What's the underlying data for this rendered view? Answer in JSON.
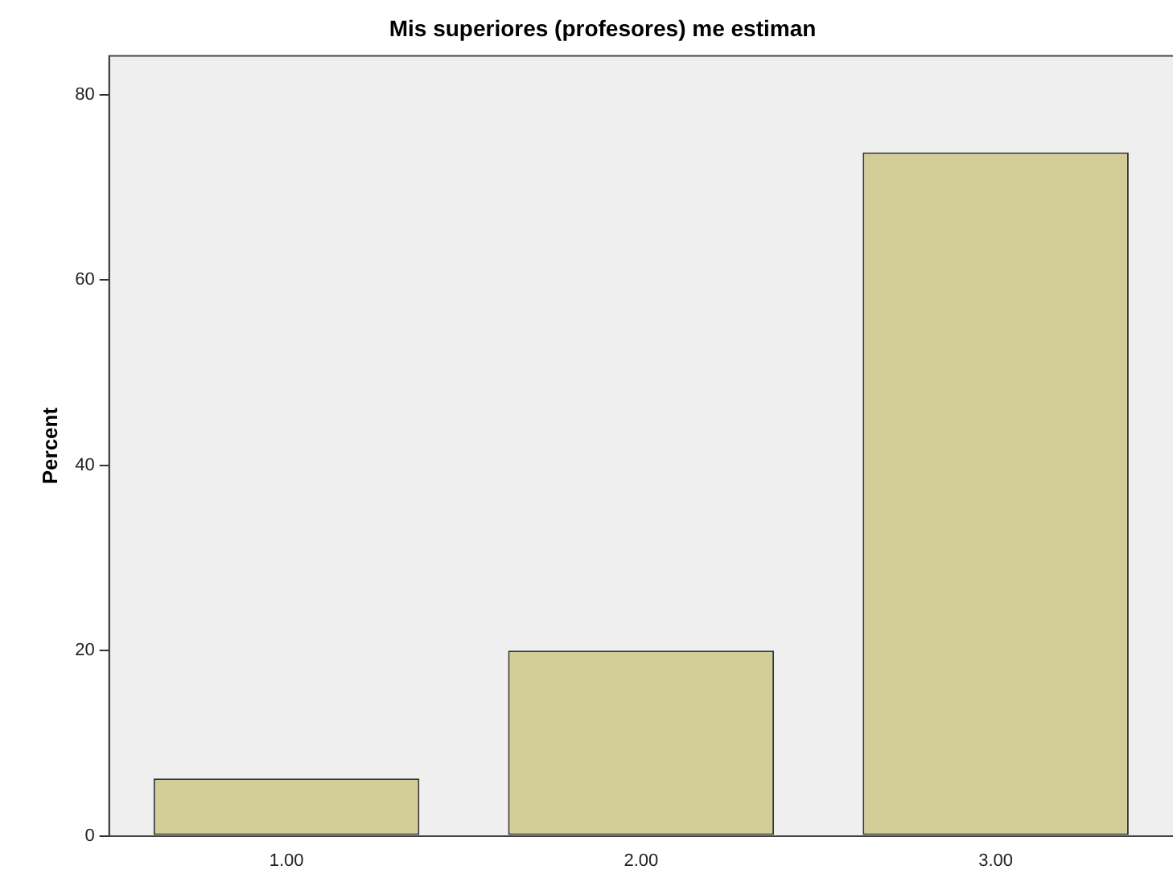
{
  "chart_data": {
    "type": "bar",
    "title": "Mis superiores (profesores) me estiman",
    "ylabel": "Percent",
    "categories": [
      "1.00",
      "2.00",
      "3.00"
    ],
    "values": [
      6.2,
      20,
      73.8
    ],
    "color": "#d3ce97",
    "ylim": [
      0,
      84.2
    ],
    "yticks": [
      0,
      20,
      40,
      60,
      80
    ],
    "grid": false,
    "legend": false
  }
}
